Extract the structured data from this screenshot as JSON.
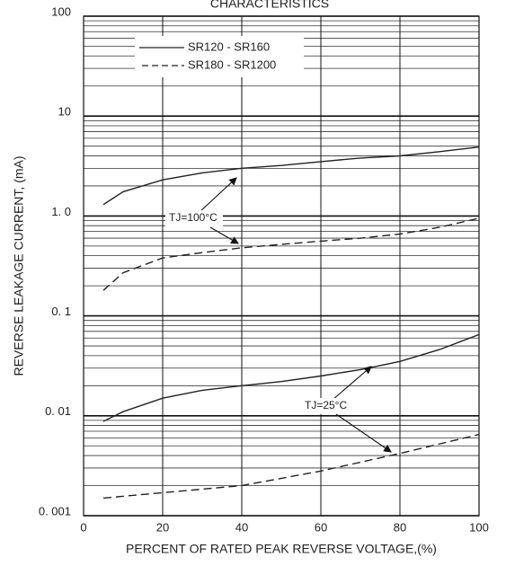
{
  "chart_data": {
    "type": "line",
    "title": "CHARACTERISTICS",
    "x_label": "PERCENT OF RATED PEAK REVERSE VOLTAGE,(%)",
    "y_label": "REVERSE LEAKAGE CURRENT, (mA)",
    "log_y": true,
    "grid": true,
    "minor_grid": true,
    "xlim": [
      0,
      100
    ],
    "xticks": [
      0,
      20,
      40,
      60,
      80,
      100
    ],
    "ylim": [
      0.001,
      100
    ],
    "yticks": [
      {
        "value": 0.001,
        "label": "0. 001"
      },
      {
        "value": 0.01,
        "label": "0. 01"
      },
      {
        "value": 0.1,
        "label": "0. 1"
      },
      {
        "value": 1,
        "label": "1. 0"
      },
      10,
      100
    ],
    "series": [
      {
        "name": "SR120 - SR160",
        "color": "#222222",
        "dash": "solid",
        "curves": [
          {
            "x": [
              5,
              10,
              20,
              30,
              40,
              50,
              60,
              70,
              80,
              90,
              100
            ],
            "values": [
              1.3,
              1.75,
              2.3,
              2.7,
              3.0,
              3.2,
              3.5,
              3.8,
              4.0,
              4.4,
              4.9
            ]
          },
          {
            "x": [
              5,
              10,
              20,
              30,
              40,
              50,
              60,
              70,
              80,
              90,
              100
            ],
            "values": [
              0.0088,
              0.011,
              0.015,
              0.018,
              0.02,
              0.022,
              0.025,
              0.029,
              0.035,
              0.046,
              0.065
            ]
          }
        ]
      },
      {
        "name": "SR180 - SR1200",
        "color": "#222222",
        "dash": "dashed",
        "curves": [
          {
            "x": [
              5,
              10,
              20,
              30,
              40,
              50,
              60,
              70,
              80,
              90,
              100
            ],
            "values": [
              0.18,
              0.27,
              0.38,
              0.43,
              0.48,
              0.52,
              0.56,
              0.6,
              0.66,
              0.77,
              0.95
            ]
          },
          {
            "x": [
              5,
              20,
              40,
              60,
              80,
              100
            ],
            "values": [
              0.0015,
              0.0017,
              0.002,
              0.0028,
              0.0042,
              0.0065
            ]
          }
        ]
      }
    ],
    "annotations": [
      "TJ=100°C",
      "TJ=25°C"
    ]
  }
}
